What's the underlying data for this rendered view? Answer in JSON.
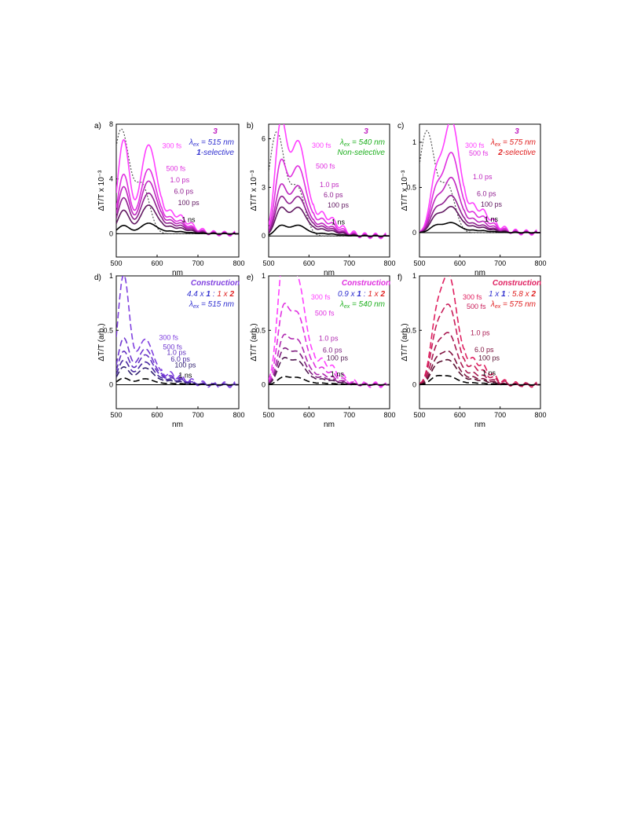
{
  "chart_data": [
    {
      "panel": "a)",
      "type": "line",
      "title": "3",
      "title_color": "#c020c0",
      "annotations": [
        {
          "parts": [
            {
              "t": "λ",
              "b": false
            },
            {
              "t": "ex",
              "b": false,
              "sub": true
            },
            {
              "t": " = 515 nm",
              "b": false
            }
          ],
          "color": "#3030d0"
        },
        {
          "parts": [
            {
              "t": "1",
              "b": true
            },
            {
              "t": "-selective",
              "b": false
            }
          ],
          "color": "#3030d0"
        }
      ],
      "ylabel": "ΔT/T x 10⁻³",
      "xlabel": "nm",
      "xlim": [
        500,
        800
      ],
      "ylim": [
        -1.7,
        8.0
      ],
      "xticks": [
        500,
        600,
        700,
        800
      ],
      "yticks": [
        0,
        4,
        8
      ],
      "peaks": [
        518,
        578
      ],
      "peak2_x": 578,
      "dotted": {
        "peak": 7.6,
        "peak_x": 512
      },
      "series": [
        {
          "name": "300 fs",
          "p1": 6.8,
          "p2": 5.9,
          "v": 4.2,
          "color": "#ff40ff",
          "style": "solid"
        },
        {
          "name": "500 fs",
          "p1": 4.3,
          "p2": 4.3,
          "v": 2.9,
          "color": "#e030e0",
          "style": "solid"
        },
        {
          "name": "1.0 ps",
          "p1": 3.4,
          "p2": 3.5,
          "v": 2.5,
          "color": "#c028c0",
          "style": "solid"
        },
        {
          "name": "6.0 ps",
          "p1": 2.6,
          "p2": 2.7,
          "v": 1.9,
          "color": "#902090",
          "style": "solid"
        },
        {
          "name": "100 ps",
          "p1": 1.7,
          "p2": 1.9,
          "v": 1.3,
          "color": "#601860",
          "style": "solid"
        },
        {
          "name": "1 ns",
          "p1": 0.6,
          "p2": 0.7,
          "v": 0.5,
          "color": "#000000",
          "style": "solid"
        }
      ]
    },
    {
      "panel": "b)",
      "type": "line",
      "title": "3",
      "title_color": "#c020c0",
      "annotations": [
        {
          "parts": [
            {
              "t": "λ",
              "b": false
            },
            {
              "t": "ex",
              "b": false,
              "sub": true
            },
            {
              "t": " = 540 nm",
              "b": false
            }
          ],
          "color": "#20b020"
        },
        {
          "parts": [
            {
              "t": "Non-selective",
              "b": false
            }
          ],
          "color": "#20b020"
        }
      ],
      "ylabel": "ΔT/T x 10⁻³",
      "xlabel": "nm",
      "xlim": [
        500,
        800
      ],
      "ylim": [
        -1.3,
        6.9
      ],
      "xticks": [
        500,
        600,
        700,
        800
      ],
      "yticks": [
        0,
        3,
        6
      ],
      "peaks": [
        530,
        572
      ],
      "peak2_x": 572,
      "dotted": {
        "peak": 6.4,
        "peak_x": 520
      },
      "series": [
        {
          "name": "300 fs",
          "p1": 6.7,
          "p2": 5.3,
          "v": 3.7,
          "color": "#ff40ff",
          "style": "solid"
        },
        {
          "name": "500 fs",
          "p1": 4.3,
          "p2": 3.9,
          "v": 2.9,
          "color": "#e030e0",
          "style": "solid"
        },
        {
          "name": "1.0 ps",
          "p1": 2.9,
          "p2": 2.8,
          "v": 2.1,
          "color": "#c028c0",
          "style": "solid"
        },
        {
          "name": "6.0 ps",
          "p1": 2.2,
          "p2": 2.2,
          "v": 1.7,
          "color": "#902090",
          "style": "solid"
        },
        {
          "name": "100 ps",
          "p1": 1.6,
          "p2": 1.6,
          "v": 1.2,
          "color": "#601860",
          "style": "solid"
        },
        {
          "name": "1 ns",
          "p1": 0.6,
          "p2": 0.6,
          "v": 0.4,
          "color": "#000000",
          "style": "solid"
        }
      ]
    },
    {
      "panel": "c)",
      "type": "line",
      "title": "3",
      "title_color": "#c020c0",
      "annotations": [
        {
          "parts": [
            {
              "t": "λ",
              "b": false
            },
            {
              "t": "ex",
              "b": false,
              "sub": true
            },
            {
              "t": " = 575 nm",
              "b": false
            }
          ],
          "color": "#e02020"
        },
        {
          "parts": [
            {
              "t": "2",
              "b": true
            },
            {
              "t": "-selective",
              "b": false
            }
          ],
          "color": "#e02020"
        }
      ],
      "ylabel": "ΔT/T x 10⁻³",
      "xlabel": "nm",
      "xlim": [
        500,
        800
      ],
      "ylim": [
        -0.27,
        1.2
      ],
      "xticks": [
        500,
        600,
        700,
        800
      ],
      "yticks": [
        0,
        0.5,
        1.0
      ],
      "peaks": [
        540,
        578
      ],
      "peak2_x": 578,
      "dotted": {
        "peak": 1.12,
        "peak_x": 518
      },
      "series": [
        {
          "name": "300 fs",
          "p1": 0.55,
          "p2": 1.13,
          "v": 0.5,
          "color": "#ff40ff",
          "style": "solid"
        },
        {
          "name": "500 fs",
          "p1": 0.4,
          "p2": 0.8,
          "v": 0.37,
          "color": "#e030e0",
          "style": "solid"
        },
        {
          "name": "1.0 ps",
          "p1": 0.3,
          "p2": 0.55,
          "v": 0.28,
          "color": "#c028c0",
          "style": "solid"
        },
        {
          "name": "6.0 ps",
          "p1": 0.22,
          "p2": 0.37,
          "v": 0.2,
          "color": "#902090",
          "style": "solid"
        },
        {
          "name": "100 ps",
          "p1": 0.16,
          "p2": 0.26,
          "v": 0.14,
          "color": "#601860",
          "style": "solid"
        },
        {
          "name": "1 ns",
          "p1": 0.07,
          "p2": 0.1,
          "v": 0.06,
          "color": "#000000",
          "style": "solid"
        }
      ]
    },
    {
      "panel": "d)",
      "type": "line",
      "title": "Construction",
      "title_color": "#8040e0",
      "annotations": [
        {
          "parts": [
            {
              "t": "4.4 x ",
              "b": false,
              "c": "#3030d0"
            },
            {
              "t": "1",
              "b": true,
              "c": "#3030d0"
            },
            {
              "t": " : ",
              "b": false,
              "c": "#3030d0"
            },
            {
              "t": "1 x ",
              "b": false,
              "c": "#e02020"
            },
            {
              "t": "2",
              "b": true,
              "c": "#e02020"
            }
          ],
          "color": "#3030d0"
        },
        {
          "parts": [
            {
              "t": "λ",
              "b": false
            },
            {
              "t": "ex",
              "b": false,
              "sub": true
            },
            {
              "t": " = 515 nm",
              "b": false
            }
          ],
          "color": "#3030d0"
        }
      ],
      "ylabel": "ΔT/T (arb.)",
      "xlabel": "nm",
      "xlim": [
        500,
        800
      ],
      "ylim": [
        -0.22,
        1.0
      ],
      "xticks": [
        500,
        600,
        700,
        800
      ],
      "yticks": [
        0,
        0.5,
        1.0
      ],
      "peaks": [
        518,
        570
      ],
      "peak2_x": 570,
      "dotted": null,
      "series": [
        {
          "name": "300 fs",
          "p1": 1.0,
          "p2": 0.38,
          "v": 0.33,
          "color": "#8040e0",
          "style": "dashed"
        },
        {
          "name": "500 fs",
          "p1": 0.42,
          "p2": 0.3,
          "v": 0.22,
          "color": "#7038d0",
          "style": "dashed"
        },
        {
          "name": "1.0 ps",
          "p1": 0.3,
          "p2": 0.25,
          "v": 0.18,
          "color": "#6030c0",
          "style": "dashed"
        },
        {
          "name": "6.0 ps",
          "p1": 0.22,
          "p2": 0.19,
          "v": 0.14,
          "color": "#4828a0",
          "style": "dashed"
        },
        {
          "name": "100 ps",
          "p1": 0.16,
          "p2": 0.14,
          "v": 0.1,
          "color": "#302070",
          "style": "dashed"
        },
        {
          "name": "1 ns",
          "p1": 0.06,
          "p2": 0.05,
          "v": 0.04,
          "color": "#000000",
          "style": "dashed"
        }
      ]
    },
    {
      "panel": "e)",
      "type": "line",
      "title": "Construction",
      "title_color": "#e030e0",
      "annotations": [
        {
          "parts": [
            {
              "t": "0.9 x ",
              "b": false,
              "c": "#3030d0"
            },
            {
              "t": "1",
              "b": true,
              "c": "#3030d0"
            },
            {
              "t": " : ",
              "b": false,
              "c": "#3030d0"
            },
            {
              "t": "1 x ",
              "b": false,
              "c": "#e02020"
            },
            {
              "t": "2",
              "b": true,
              "c": "#e02020"
            }
          ],
          "color": "#3030d0"
        },
        {
          "parts": [
            {
              "t": "λ",
              "b": false
            },
            {
              "t": "ex",
              "b": false,
              "sub": true
            },
            {
              "t": " = 540 nm",
              "b": false
            }
          ],
          "color": "#20b020"
        }
      ],
      "ylabel": "ΔT/T (arb.)",
      "xlabel": "nm",
      "xlim": [
        500,
        800
      ],
      "ylim": [
        -0.22,
        1.0
      ],
      "xticks": [
        500,
        600,
        700,
        800
      ],
      "yticks": [
        0,
        0.5,
        1.0
      ],
      "peaks": [
        535,
        570
      ],
      "peak2_x": 570,
      "dotted": null,
      "series": [
        {
          "name": "300 fs",
          "p1": 1.0,
          "p2": 0.88,
          "v": 0.82,
          "color": "#ff40ff",
          "style": "dashed"
        },
        {
          "name": "500 fs",
          "p1": 0.6,
          "p2": 0.59,
          "v": 0.5,
          "color": "#e030e0",
          "style": "dashed"
        },
        {
          "name": "1.0 ps",
          "p1": 0.37,
          "p2": 0.37,
          "v": 0.3,
          "color": "#b028b0",
          "style": "dashed"
        },
        {
          "name": "6.0 ps",
          "p1": 0.27,
          "p2": 0.27,
          "v": 0.22,
          "color": "#802080",
          "style": "dashed"
        },
        {
          "name": "100 ps",
          "p1": 0.2,
          "p2": 0.2,
          "v": 0.16,
          "color": "#501850",
          "style": "dashed"
        },
        {
          "name": "1 ns",
          "p1": 0.06,
          "p2": 0.06,
          "v": 0.05,
          "color": "#000000",
          "style": "dashed"
        }
      ]
    },
    {
      "panel": "f)",
      "type": "line",
      "title": "Construction",
      "title_color": "#e02060",
      "annotations": [
        {
          "parts": [
            {
              "t": "1 x ",
              "b": false,
              "c": "#3030d0"
            },
            {
              "t": "1",
              "b": true,
              "c": "#3030d0"
            },
            {
              "t": " : ",
              "b": false,
              "c": "#3030d0"
            },
            {
              "t": "5.8 x ",
              "b": false,
              "c": "#e02020"
            },
            {
              "t": "2",
              "b": true,
              "c": "#e02020"
            }
          ],
          "color": "#3030d0"
        },
        {
          "parts": [
            {
              "t": "λ",
              "b": false
            },
            {
              "t": "ex",
              "b": false,
              "sub": true
            },
            {
              "t": " = 575 nm",
              "b": false
            }
          ],
          "color": "#e02020"
        }
      ],
      "ylabel": "ΔT/T (arb.)",
      "xlabel": "nm",
      "xlim": [
        500,
        800
      ],
      "ylim": [
        -0.22,
        1.0
      ],
      "xticks": [
        500,
        600,
        700,
        800
      ],
      "yticks": [
        0,
        0.5,
        1.0
      ],
      "peaks": [
        540,
        572
      ],
      "peak2_x": 572,
      "dotted": null,
      "series": [
        {
          "name": "300 fs",
          "p1": 0.45,
          "p2": 0.9,
          "v": 0.42,
          "color": "#e02060",
          "style": "dashed"
        },
        {
          "name": "500 fs",
          "p1": 0.35,
          "p2": 0.65,
          "v": 0.32,
          "color": "#c81c58",
          "style": "dashed"
        },
        {
          "name": "1.0 ps",
          "p1": 0.24,
          "p2": 0.42,
          "v": 0.22,
          "color": "#a81850",
          "style": "dashed"
        },
        {
          "name": "6.0 ps",
          "p1": 0.17,
          "p2": 0.27,
          "v": 0.15,
          "color": "#801440",
          "style": "dashed"
        },
        {
          "name": "100 ps",
          "p1": 0.13,
          "p2": 0.2,
          "v": 0.12,
          "color": "#581030",
          "style": "dashed"
        },
        {
          "name": "1 ns",
          "p1": 0.06,
          "p2": 0.07,
          "v": 0.05,
          "color": "#000000",
          "style": "dashed"
        }
      ]
    }
  ]
}
